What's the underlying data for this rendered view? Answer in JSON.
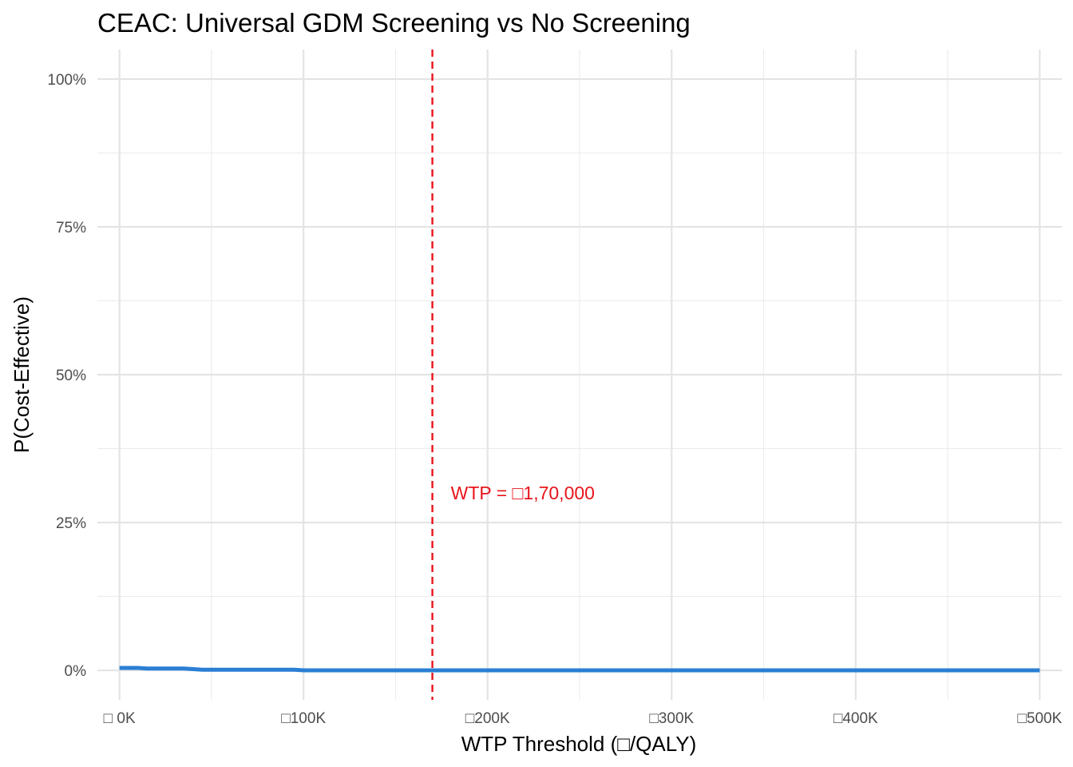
{
  "chart_data": {
    "type": "line",
    "title": "CEAC: Universal GDM Screening vs No Screening",
    "xlabel": "WTP Threshold (□/QALY)",
    "ylabel": "P(Cost-Effective)",
    "xlim": [
      -12000,
      512000
    ],
    "ylim": [
      -0.05,
      1.05
    ],
    "x_ticks": [
      0,
      100000,
      200000,
      300000,
      400000,
      500000
    ],
    "x_tick_labels": [
      "□ 0K",
      "□100K",
      "□200K",
      "□300K",
      "□400K",
      "□500K"
    ],
    "y_ticks": [
      0,
      0.25,
      0.5,
      0.75,
      1.0
    ],
    "y_tick_labels": [
      "0%",
      "25%",
      "50%",
      "75%",
      "100%"
    ],
    "grid": true,
    "series": [
      {
        "color": "#2a7fd4",
        "x": [
          0,
          10000,
          15000,
          20000,
          25000,
          30000,
          35000,
          40000,
          45000,
          50000,
          60000,
          70000,
          80000,
          90000,
          95000,
          100000,
          150000,
          200000,
          250000,
          300000,
          350000,
          400000,
          450000,
          500000
        ],
        "values": [
          0.004,
          0.004,
          0.003,
          0.003,
          0.003,
          0.003,
          0.003,
          0.002,
          0.001,
          0.001,
          0.001,
          0.001,
          0.001,
          0.001,
          0.001,
          0.0,
          0.0,
          0.0,
          0.0,
          0.0,
          0.0,
          0.0,
          0.0,
          0.0
        ]
      }
    ],
    "annotations": [
      {
        "type": "vline",
        "x": 170000,
        "style": "dashed",
        "color": "#e8141c",
        "label": "WTP = □1,70,000",
        "label_x": 180000,
        "label_y": 0.3
      }
    ]
  }
}
